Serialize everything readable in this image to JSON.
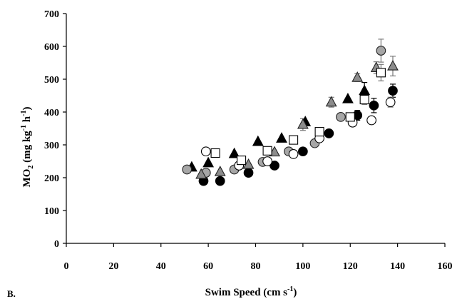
{
  "chart_data": {
    "type": "scatter",
    "panel_label": "B.",
    "xlabel": "Swim Speed (cm s",
    "xlabel_sup": "-1",
    "xlabel_end": ")",
    "ylabel": {
      "base": "MO",
      "sub": "2",
      "unit1": " (mg kg",
      "sup1": "-1",
      "unit2": " h",
      "sup2": "-1",
      "end": ")"
    },
    "xlim": [
      0,
      160
    ],
    "ylim": [
      0,
      700
    ],
    "xticks": [
      0,
      20,
      40,
      60,
      80,
      100,
      120,
      140,
      160
    ],
    "yticks": [
      0,
      100,
      200,
      300,
      400,
      500,
      600,
      700
    ],
    "grid": false,
    "series": [
      {
        "marker": "circle",
        "fill": "#000000",
        "stroke": "#000000",
        "points": [
          [
            58,
            190
          ],
          [
            65,
            190
          ],
          [
            77,
            215
          ],
          [
            88,
            237
          ],
          [
            100,
            280
          ],
          [
            111,
            335
          ],
          [
            123,
            390
          ],
          [
            130,
            420
          ],
          [
            138,
            465
          ]
        ],
        "errors": [
          null,
          null,
          null,
          null,
          null,
          null,
          15,
          22,
          20
        ]
      },
      {
        "marker": "triangle",
        "fill": "#000000",
        "stroke": "#000000",
        "points": [
          [
            53,
            232
          ],
          [
            60,
            245
          ],
          [
            71,
            273
          ],
          [
            81,
            310
          ],
          [
            91,
            320
          ],
          [
            101,
            370
          ],
          [
            119,
            440
          ],
          [
            126,
            465
          ]
        ],
        "errors": [
          null,
          null,
          null,
          null,
          null,
          null,
          null,
          25
        ]
      },
      {
        "marker": "circle",
        "fill": "#a6a6a6",
        "stroke": "#222222",
        "points": [
          [
            51,
            225
          ],
          [
            59,
            215
          ],
          [
            71,
            225
          ],
          [
            83,
            248
          ],
          [
            94,
            280
          ],
          [
            105,
            305
          ],
          [
            116,
            385
          ],
          [
            133,
            587
          ]
        ],
        "errors": [
          null,
          null,
          null,
          null,
          null,
          null,
          null,
          35
        ]
      },
      {
        "marker": "triangle",
        "fill": "#8c8c8c",
        "stroke": "#222222",
        "points": [
          [
            57,
            210
          ],
          [
            65,
            218
          ],
          [
            77,
            240
          ],
          [
            88,
            278
          ],
          [
            100,
            362
          ],
          [
            112,
            430
          ],
          [
            123,
            505
          ],
          [
            131,
            535
          ],
          [
            138,
            540
          ]
        ],
        "errors": [
          null,
          null,
          null,
          null,
          18,
          15,
          12,
          18,
          30
        ]
      },
      {
        "marker": "circle",
        "fill": "#ffffff",
        "stroke": "#000000",
        "points": [
          [
            59,
            280
          ],
          [
            73,
            237
          ],
          [
            85,
            250
          ],
          [
            96,
            272
          ],
          [
            107,
            320
          ],
          [
            121,
            368
          ],
          [
            129,
            375
          ],
          [
            137,
            430
          ]
        ],
        "errors": [
          null,
          null,
          null,
          null,
          null,
          null,
          null,
          15
        ]
      },
      {
        "marker": "square",
        "fill": "#ffffff",
        "stroke": "#000000",
        "points": [
          [
            63,
            275
          ],
          [
            74,
            253
          ],
          [
            85,
            282
          ],
          [
            96,
            315
          ],
          [
            107,
            340
          ],
          [
            120,
            385
          ],
          [
            126,
            438
          ],
          [
            133,
            520
          ]
        ],
        "errors": [
          null,
          null,
          null,
          null,
          null,
          null,
          15,
          25
        ]
      }
    ]
  }
}
